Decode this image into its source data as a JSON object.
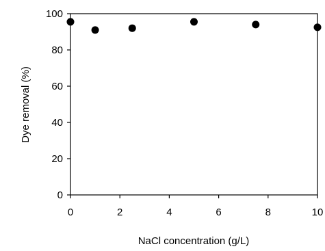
{
  "chart_data": {
    "type": "scatter",
    "title": "",
    "xlabel": "NaCl concentration (g/L)",
    "ylabel": "Dye removal (%)",
    "xlim": [
      0,
      10
    ],
    "ylim": [
      0,
      100
    ],
    "xticks": [
      0,
      2,
      4,
      6,
      8,
      10
    ],
    "yticks": [
      0,
      20,
      40,
      60,
      80,
      100
    ],
    "grid": false,
    "legend": "none",
    "marker_color": "#000000",
    "points": [
      {
        "x": 0,
        "y": 95.5
      },
      {
        "x": 1,
        "y": 91
      },
      {
        "x": 2.5,
        "y": 92
      },
      {
        "x": 5,
        "y": 95.5
      },
      {
        "x": 7.5,
        "y": 94
      },
      {
        "x": 10,
        "y": 92.5
      }
    ]
  }
}
